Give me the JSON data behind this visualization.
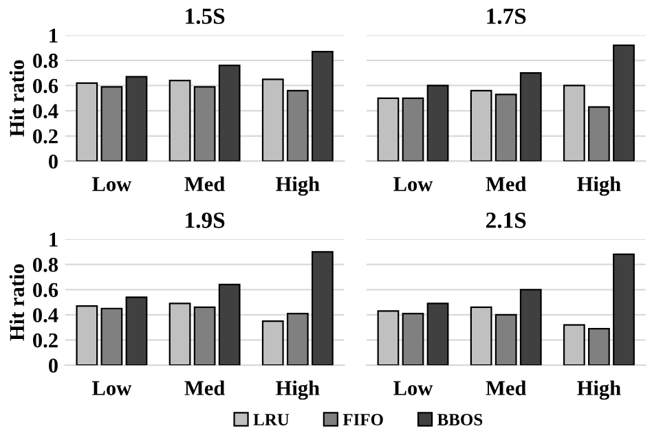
{
  "chart_data": [
    {
      "type": "bar",
      "title": "1.5S",
      "ylabel": "Hit ratio",
      "categories": [
        "Low",
        "Med",
        "High"
      ],
      "ylim": [
        0,
        1
      ],
      "yticks": [
        0,
        0.2,
        0.4,
        0.6,
        0.8,
        1
      ],
      "grid": "y",
      "legend": "bottom",
      "series": [
        {
          "name": "LRU",
          "color": "#c0c0c0",
          "values": [
            0.62,
            0.64,
            0.65
          ]
        },
        {
          "name": "FIFO",
          "color": "#808080",
          "values": [
            0.59,
            0.59,
            0.56
          ]
        },
        {
          "name": "BBOS",
          "color": "#404040",
          "values": [
            0.67,
            0.76,
            0.87
          ]
        }
      ]
    },
    {
      "type": "bar",
      "title": "1.7S",
      "categories": [
        "Low",
        "Med",
        "High"
      ],
      "ylim": [
        0,
        1
      ],
      "yticks": [
        0,
        0.2,
        0.4,
        0.6,
        0.8,
        1
      ],
      "grid": "y",
      "tick_labels": "x",
      "series": [
        {
          "color": "#c0c0c0",
          "values": [
            0.5,
            0.56,
            0.6
          ]
        },
        {
          "color": "#808080",
          "values": [
            0.5,
            0.53,
            0.43
          ]
        },
        {
          "color": "#404040",
          "values": [
            0.6,
            0.7,
            0.92
          ]
        }
      ]
    },
    {
      "type": "bar",
      "title": "1.9S",
      "ylabel": "Hit ratio",
      "categories": [
        "Low",
        "Med",
        "High"
      ],
      "ylim": [
        0,
        1
      ],
      "yticks": [
        0,
        0.2,
        0.4,
        0.6,
        0.8,
        1
      ],
      "grid": "y",
      "series": [
        {
          "color": "#c0c0c0",
          "values": [
            0.47,
            0.49,
            0.35
          ]
        },
        {
          "color": "#808080",
          "values": [
            0.45,
            0.46,
            0.41
          ]
        },
        {
          "color": "#404040",
          "values": [
            0.54,
            0.64,
            0.9
          ]
        }
      ]
    },
    {
      "type": "bar",
      "title": "2.1S",
      "categories": [
        "Low",
        "Med",
        "High"
      ],
      "ylim": [
        0,
        1
      ],
      "yticks": [
        0,
        0.2,
        0.4,
        0.6,
        0.8,
        1
      ],
      "grid": "y",
      "tick_labels": "x",
      "series": [
        {
          "color": "#c0c0c0",
          "values": [
            0.43,
            0.46,
            0.32
          ]
        },
        {
          "color": "#808080",
          "values": [
            0.41,
            0.4,
            0.29
          ]
        },
        {
          "color": "#404040",
          "values": [
            0.49,
            0.6,
            0.88
          ]
        }
      ]
    }
  ]
}
